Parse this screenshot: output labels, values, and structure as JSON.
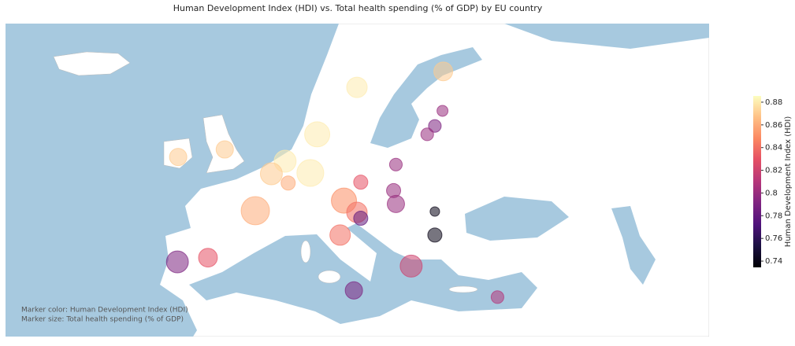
{
  "chart_data": {
    "type": "scatter",
    "title": "Human Development Index (HDI) vs. Total health spending (% of GDP) by EU country",
    "x": [
      14.5,
      25.8,
      25.7,
      24.7,
      23.7,
      9.3,
      -8.9,
      -2.8,
      5.1,
      3.3,
      8.4,
      5.5,
      19.6,
      15.0,
      19.3,
      19.6,
      1.2,
      12.8,
      14.5,
      15.0,
      24.7,
      24.7,
      12.3,
      -5.0,
      -9.0,
      21.6,
      14.1,
      32.9
    ],
    "y": [
      60.1,
      62.0,
      57.3,
      55.5,
      54.5,
      54.5,
      51.8,
      52.7,
      51.3,
      49.8,
      49.9,
      48.7,
      50.9,
      48.8,
      47.8,
      46.2,
      45.4,
      46.6,
      45.2,
      44.5,
      45.3,
      42.5,
      42.5,
      39.8,
      39.3,
      38.8,
      35.9,
      35.1
    ],
    "size": [
      8.4,
      7.7,
      4.5,
      5.2,
      5.2,
      10.3,
      7.1,
      7.1,
      9.0,
      9.0,
      11.0,
      5.8,
      5.2,
      5.8,
      5.8,
      7.1,
      11.6,
      10.3,
      8.4,
      5.8,
      3.9,
      5.8,
      8.4,
      7.7,
      9.0,
      9.0,
      7.1,
      5.2
    ],
    "color_values": [
      0.88,
      0.87,
      0.8,
      0.79,
      0.8,
      0.88,
      0.87,
      0.87,
      0.88,
      0.87,
      0.88,
      0.86,
      0.8,
      0.83,
      0.8,
      0.8,
      0.86,
      0.85,
      0.84,
      0.78,
      0.74,
      0.74,
      0.84,
      0.83,
      0.79,
      0.82,
      0.79,
      0.81
    ],
    "colormap": "magma",
    "xlim": [
      -31.5,
      60.6
    ],
    "ylim": [
      30.4,
      67.7
    ],
    "clim": [
      0.7345,
      0.8855
    ],
    "cticks": [
      0.74,
      0.76,
      0.78,
      0.8,
      0.82,
      0.84,
      0.86,
      0.88
    ],
    "colorbar_label": "Human Development Index (HDI)",
    "annotations": [
      "Marker color: Human Development Index (HDI)",
      "Marker size: Total health spending (% of GDP)"
    ]
  }
}
